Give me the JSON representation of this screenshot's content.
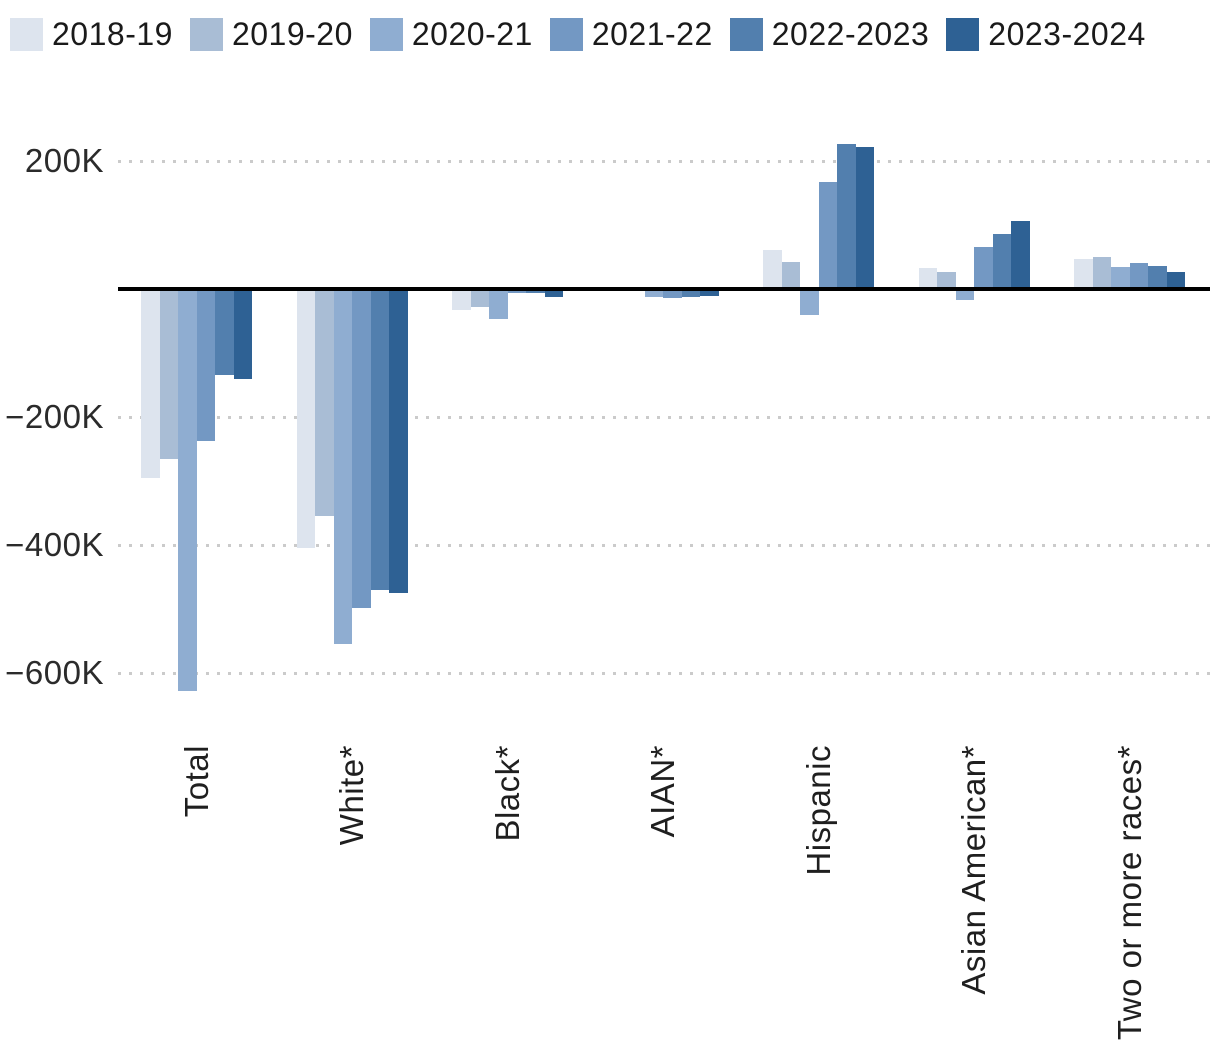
{
  "legend": {
    "items": [
      {
        "label": "2018-19",
        "color": "#dde4ee"
      },
      {
        "label": "2019-20",
        "color": "#a9bdd5"
      },
      {
        "label": "2020-21",
        "color": "#8fadd1"
      },
      {
        "label": "2021-22",
        "color": "#7398c3"
      },
      {
        "label": "2022-2023",
        "color": "#527fae"
      },
      {
        "label": "2023-2024",
        "color": "#2e6194"
      }
    ]
  },
  "y_axis": {
    "ticks": [
      {
        "label": "200K",
        "value": 200
      },
      {
        "label": "−200K",
        "value": -200
      },
      {
        "label": "−400K",
        "value": -400
      },
      {
        "label": "−600K",
        "value": -600
      }
    ]
  },
  "chart_data": {
    "type": "bar",
    "unit": "thousands (K)",
    "categories": [
      "Total",
      "White*",
      "Black*",
      "AIAN*",
      "Hispanic",
      "Asian American*",
      "Two or more races*"
    ],
    "series": [
      {
        "name": "2018-19",
        "color": "#dde4ee",
        "values": [
          -295,
          -405,
          -33,
          -1,
          61,
          33,
          47
        ]
      },
      {
        "name": "2019-20",
        "color": "#a9bdd5",
        "values": [
          -265,
          -355,
          -28,
          -1,
          42,
          27,
          50
        ]
      },
      {
        "name": "2020-21",
        "color": "#8fadd1",
        "values": [
          -628,
          -555,
          -47,
          -12,
          -41,
          -17,
          34
        ]
      },
      {
        "name": "2021-22",
        "color": "#7398c3",
        "values": [
          -238,
          -498,
          -7,
          -14,
          167,
          66,
          41
        ]
      },
      {
        "name": "2022-2023",
        "color": "#527fae",
        "values": [
          -135,
          -470,
          -7,
          -12,
          227,
          86,
          36
        ]
      },
      {
        "name": "2023-2024",
        "color": "#2e6194",
        "values": [
          -140,
          -475,
          -12,
          -11,
          222,
          106,
          27
        ]
      }
    ],
    "title": "",
    "xlabel": "",
    "ylabel": "",
    "ylim": [
      -660,
      260
    ],
    "grid": "horizontal-dotted",
    "legend_position": "top"
  },
  "style": {
    "axis_color": "#000000",
    "grid_color": "#cbcbcb",
    "text_color": "#1f1f1f",
    "background": "#ffffff"
  }
}
